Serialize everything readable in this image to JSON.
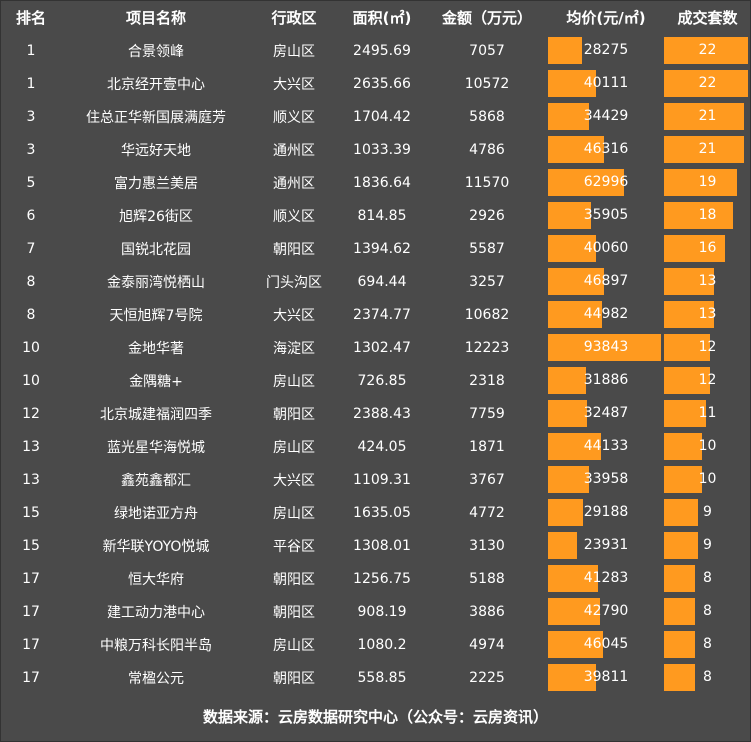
{
  "headers": {
    "rank": "排名",
    "name": "项目名称",
    "district": "行政区",
    "area": "面积(㎡)",
    "amount": "金额（万元）",
    "price": "均价(元/㎡)",
    "count": "成交套数"
  },
  "colors": {
    "background": "#4a4a4a",
    "bar": "#ff9a1f",
    "text": "#ffffff"
  },
  "rows": [
    {
      "rank": "1",
      "name": "合景领峰",
      "district": "房山区",
      "area": "2495.69",
      "amount": "7057",
      "price": "28275",
      "count": "22"
    },
    {
      "rank": "1",
      "name": "北京经开壹中心",
      "district": "大兴区",
      "area": "2635.66",
      "amount": "10572",
      "price": "40111",
      "count": "22"
    },
    {
      "rank": "3",
      "name": "住总正华新国展满庭芳",
      "district": "顺义区",
      "area": "1704.42",
      "amount": "5868",
      "price": "34429",
      "count": "21"
    },
    {
      "rank": "3",
      "name": "华远好天地",
      "district": "通州区",
      "area": "1033.39",
      "amount": "4786",
      "price": "46316",
      "count": "21"
    },
    {
      "rank": "5",
      "name": "富力惠兰美居",
      "district": "通州区",
      "area": "1836.64",
      "amount": "11570",
      "price": "62996",
      "count": "19"
    },
    {
      "rank": "6",
      "name": "旭辉26街区",
      "district": "顺义区",
      "area": "814.85",
      "amount": "2926",
      "price": "35905",
      "count": "18"
    },
    {
      "rank": "7",
      "name": "国锐北花园",
      "district": "朝阳区",
      "area": "1394.62",
      "amount": "5587",
      "price": "40060",
      "count": "16"
    },
    {
      "rank": "8",
      "name": "金泰丽湾悦栖山",
      "district": "门头沟区",
      "area": "694.44",
      "amount": "3257",
      "price": "46897",
      "count": "13"
    },
    {
      "rank": "8",
      "name": "天恒旭辉7号院",
      "district": "大兴区",
      "area": "2374.77",
      "amount": "10682",
      "price": "44982",
      "count": "13"
    },
    {
      "rank": "10",
      "name": "金地华著",
      "district": "海淀区",
      "area": "1302.47",
      "amount": "12223",
      "price": "93843",
      "count": "12"
    },
    {
      "rank": "10",
      "name": "金隅糖+",
      "district": "房山区",
      "area": "726.85",
      "amount": "2318",
      "price": "31886",
      "count": "12"
    },
    {
      "rank": "12",
      "name": "北京城建福润四季",
      "district": "朝阳区",
      "area": "2388.43",
      "amount": "7759",
      "price": "32487",
      "count": "11"
    },
    {
      "rank": "13",
      "name": "蓝光星华海悦城",
      "district": "房山区",
      "area": "424.05",
      "amount": "1871",
      "price": "44133",
      "count": "10"
    },
    {
      "rank": "13",
      "name": "鑫苑鑫都汇",
      "district": "大兴区",
      "area": "1109.31",
      "amount": "3767",
      "price": "33958",
      "count": "10"
    },
    {
      "rank": "15",
      "name": "绿地诺亚方舟",
      "district": "房山区",
      "area": "1635.05",
      "amount": "4772",
      "price": "29188",
      "count": "9"
    },
    {
      "rank": "15",
      "name": "新华联YOYO悦城",
      "district": "平谷区",
      "area": "1308.01",
      "amount": "3130",
      "price": "23931",
      "count": "9"
    },
    {
      "rank": "17",
      "name": "恒大华府",
      "district": "朝阳区",
      "area": "1256.75",
      "amount": "5188",
      "price": "41283",
      "count": "8"
    },
    {
      "rank": "17",
      "name": "建工动力港中心",
      "district": "朝阳区",
      "area": "908.19",
      "amount": "3886",
      "price": "42790",
      "count": "8"
    },
    {
      "rank": "17",
      "name": "中粮万科长阳半岛",
      "district": "房山区",
      "area": "1080.2",
      "amount": "4974",
      "price": "46045",
      "count": "8"
    },
    {
      "rank": "17",
      "name": "常楹公元",
      "district": "朝阳区",
      "area": "558.85",
      "amount": "2225",
      "price": "39811",
      "count": "8"
    }
  ],
  "footer": "数据来源：云房数据研究中心（公众号：云房资讯）"
}
